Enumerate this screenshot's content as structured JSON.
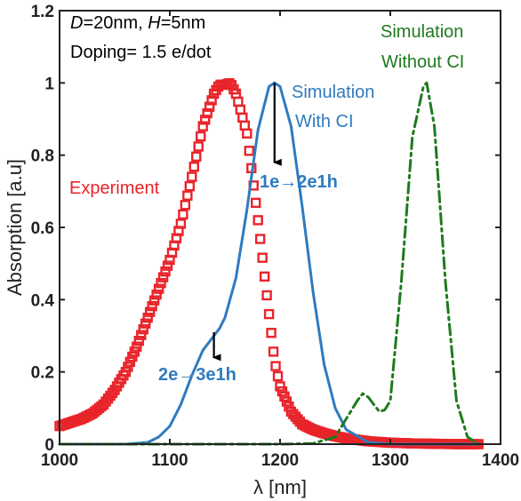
{
  "chart_data": {
    "type": "line",
    "title": "",
    "xlabel": "λ [nm]",
    "ylabel": "Absorption [a.u]",
    "xlim": [
      1000,
      1400
    ],
    "ylim": [
      0,
      1.2
    ],
    "xticks": [
      1000,
      1100,
      1200,
      1300,
      1400
    ],
    "yticks": [
      0,
      0.2,
      0.4,
      0.6,
      0.8,
      1,
      1.2
    ],
    "xtick_labels": [
      "1000",
      "1100",
      "1200",
      "1300",
      "1400"
    ],
    "ytick_labels": [
      "0",
      "0.2",
      "0.4",
      "0.6",
      "0.8",
      "1",
      "1.2"
    ],
    "grid": false,
    "series": [
      {
        "name": "Experiment",
        "style": "square-markers",
        "color": "#e8242a",
        "x": [
          1000,
          1010,
          1020,
          1030,
          1040,
          1050,
          1060,
          1070,
          1080,
          1090,
          1100,
          1110,
          1120,
          1130,
          1140,
          1145,
          1150,
          1155,
          1160,
          1170,
          1180,
          1190,
          1195,
          1200,
          1210,
          1220,
          1230,
          1240,
          1250,
          1260,
          1270,
          1280,
          1290,
          1300,
          1320,
          1340,
          1360,
          1380
        ],
        "y": [
          0.05,
          0.06,
          0.07,
          0.085,
          0.11,
          0.15,
          0.2,
          0.27,
          0.35,
          0.43,
          0.51,
          0.61,
          0.74,
          0.88,
          0.97,
          0.995,
          0.995,
          1.0,
          0.97,
          0.86,
          0.62,
          0.36,
          0.23,
          0.16,
          0.09,
          0.055,
          0.04,
          0.03,
          0.022,
          0.016,
          0.012,
          0.008,
          0.006,
          0.004,
          0.002,
          0.001,
          0.0,
          0.0
        ]
      },
      {
        "name": "Simulation With CI",
        "style": "solid",
        "color": "#2f7bbf",
        "x": [
          1000,
          1060,
          1080,
          1090,
          1100,
          1110,
          1120,
          1130,
          1140,
          1145,
          1150,
          1160,
          1170,
          1180,
          1190,
          1195,
          1200,
          1210,
          1220,
          1230,
          1240,
          1250,
          1260,
          1280,
          1300,
          1380
        ],
        "y": [
          0.0,
          0.0,
          0.005,
          0.02,
          0.05,
          0.11,
          0.19,
          0.26,
          0.3,
          0.32,
          0.35,
          0.46,
          0.65,
          0.87,
          0.99,
          1.0,
          0.99,
          0.88,
          0.66,
          0.42,
          0.22,
          0.1,
          0.04,
          0.005,
          0.0,
          0.0
        ]
      },
      {
        "name": "Simulation Without CI",
        "style": "dash-dot",
        "color": "#1f7a1f",
        "x": [
          1000,
          1200,
          1230,
          1250,
          1260,
          1270,
          1275,
          1280,
          1290,
          1295,
          1300,
          1310,
          1320,
          1330,
          1333,
          1340,
          1350,
          1360,
          1370,
          1380
        ],
        "y": [
          0.0,
          0.0,
          0.002,
          0.02,
          0.07,
          0.12,
          0.14,
          0.13,
          0.09,
          0.095,
          0.12,
          0.45,
          0.85,
          0.99,
          1.0,
          0.88,
          0.45,
          0.12,
          0.02,
          0.0
        ]
      }
    ],
    "annotations": [
      {
        "id": "params-1",
        "text": "D=20nm, H=5nm",
        "color": "#222222"
      },
      {
        "id": "params-2",
        "text": "Doping= 1.5 e/dot",
        "color": "#222222"
      },
      {
        "id": "label-exp",
        "text": "Experiment",
        "color": "#e8242a"
      },
      {
        "id": "label-simci-1",
        "text": "Simulation",
        "color": "#2f7bbf"
      },
      {
        "id": "label-simci-2",
        "text": "With CI",
        "color": "#2f7bbf"
      },
      {
        "id": "label-simnoci-1",
        "text": "Simulation",
        "color": "#1f7a1f"
      },
      {
        "id": "label-simnoci-2",
        "text": "Without CI",
        "color": "#1f7a1f"
      },
      {
        "id": "label-1e2e1h",
        "text": "1e→2e1h",
        "color": "#2f7bbf"
      },
      {
        "id": "label-2e3e1h",
        "text": "2e→3e1h",
        "color": "#2f7bbf"
      }
    ],
    "arrows": [
      {
        "from": [
          1195,
          1.0
        ],
        "to": [
          1195,
          0.78
        ]
      },
      {
        "from": [
          1140,
          0.31
        ],
        "to": [
          1140,
          0.24
        ]
      }
    ]
  }
}
